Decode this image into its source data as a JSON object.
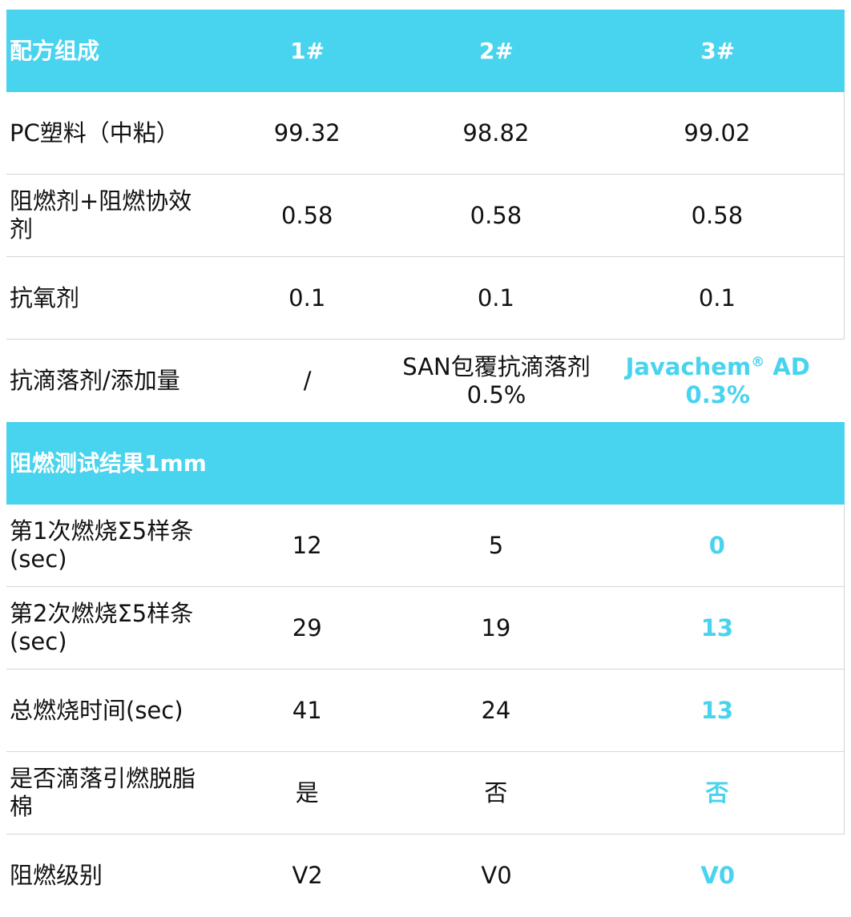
{
  "header": {
    "label": "配方组成",
    "col1": "1#",
    "col2": "2#",
    "col3": "3#"
  },
  "formulation": [
    {
      "label": "PC塑料（中粘）",
      "v1": "99.32",
      "v2": "98.82",
      "v3": "99.02"
    },
    {
      "label": "阻燃剂+阻燃协效剂",
      "v1": "0.58",
      "v2": "0.58",
      "v3": "0.58"
    },
    {
      "label": "抗氧剂",
      "v1": "0.1",
      "v2": "0.1",
      "v3": "0.1"
    }
  ],
  "anti_drip": {
    "label": "抗滴落剂/添加量",
    "v1": "/",
    "v2_line1": "SAN包覆抗滴落剂",
    "v2_line2": "0.5%",
    "v3_name": "Javachem",
    "v3_mark": "®",
    "v3_suffix": " AD",
    "v3_line2": "0.3%"
  },
  "section2": {
    "label": "阻燃测试结果1mm"
  },
  "results": [
    {
      "label_line1": "第1次燃烧Σ5样条",
      "label_line2": "(sec)",
      "v1": "12",
      "v2": "5",
      "v3": "0"
    },
    {
      "label_line1": "第2次燃烧Σ5样条",
      "label_line2": "(sec)",
      "v1": "29",
      "v2": "19",
      "v3": "13"
    }
  ],
  "results2": [
    {
      "label": "总燃烧时间(sec)",
      "v1": "41",
      "v2": "24",
      "v3": "13"
    },
    {
      "label": "是否滴落引燃脱脂棉",
      "v1": "是",
      "v2": "否",
      "v3": "否"
    },
    {
      "label": "阻燃级别",
      "v1": "V2",
      "v2": "V0",
      "v3": "V0"
    }
  ],
  "colors": {
    "accent": "#48d3ee",
    "text": "#111111",
    "border": "#d6d6d6"
  }
}
